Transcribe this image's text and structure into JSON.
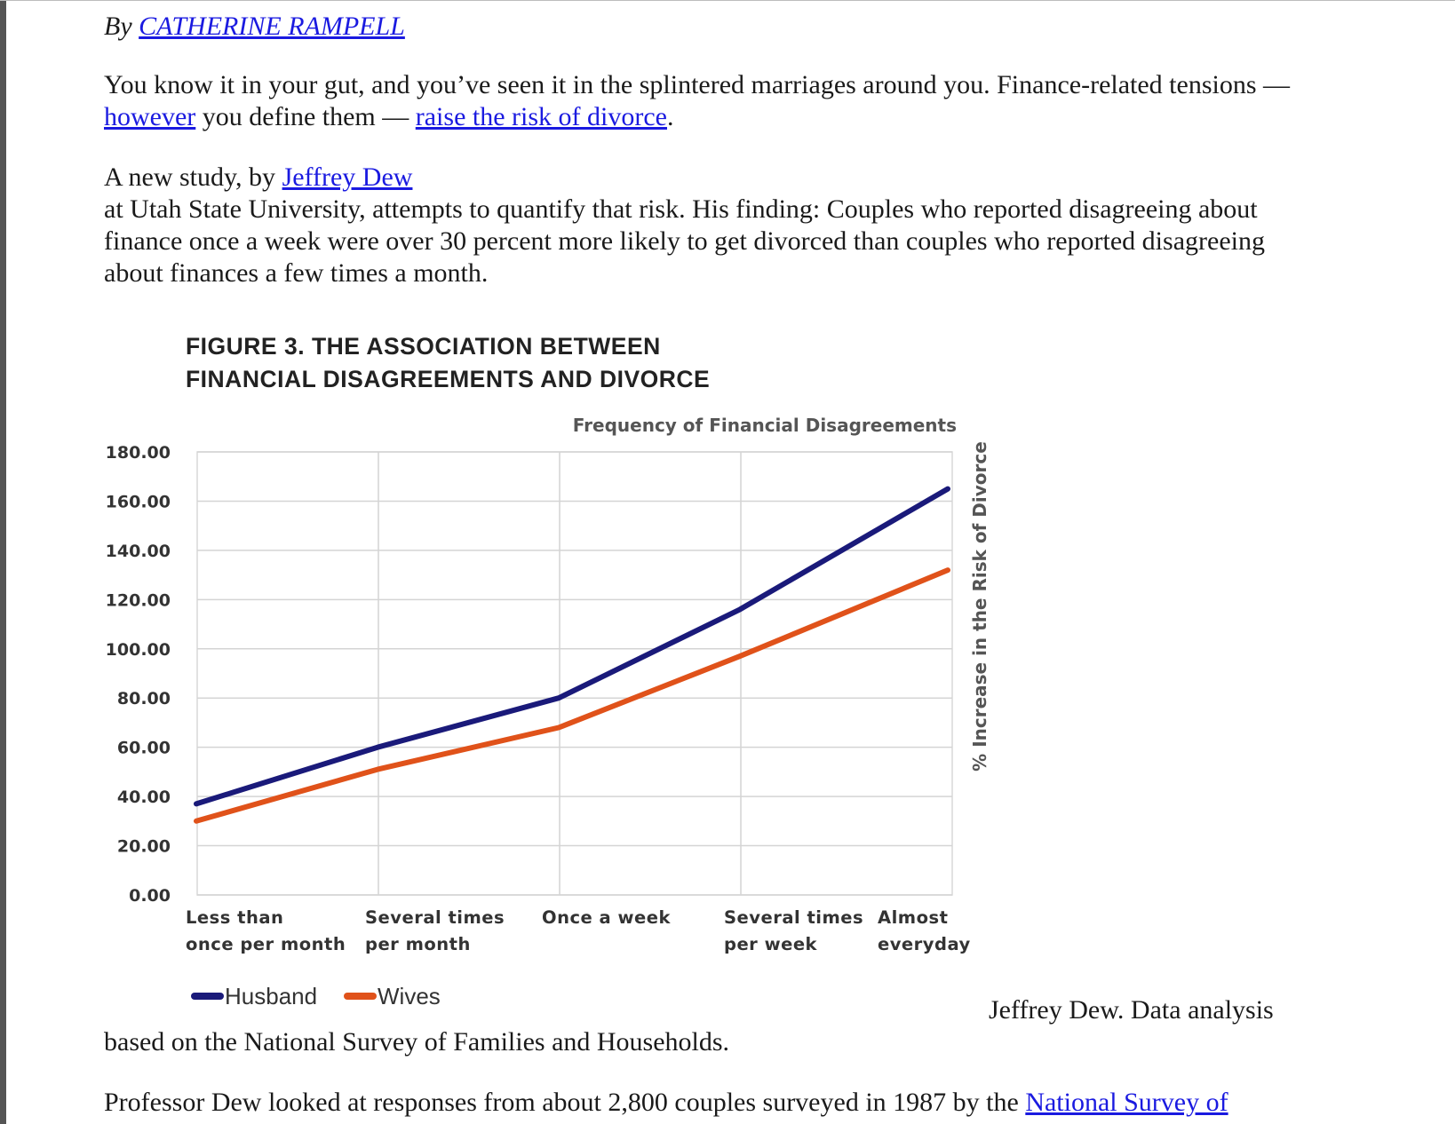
{
  "byline": {
    "prefix": "By ",
    "author": "CATHERINE RAMPELL"
  },
  "paragraph1": {
    "line1": "You know it in your gut, and you’ve seen it in the splintered marriages around you. Finance-related tensions —",
    "link_however": "however",
    "mid": " you define them — ",
    "link_raise": "raise the risk of divorce",
    "end": "."
  },
  "paragraph2": {
    "prefix": "A new study, by ",
    "link_dew": "Jeffrey Dew",
    "line2": "at Utah State University, attempts to quantify that risk. His finding: Couples who reported disagreeing about",
    "line3": "finance once a week were over 30 percent more likely to get divorced than couples who reported disagreeing",
    "line4": "about finances a few times a month."
  },
  "figure": {
    "title_line1": "FIGURE 3. THE ASSOCIATION BETWEEN",
    "title_line2": "FINANCIAL DISAGREEMENTS AND DIVORCE"
  },
  "chart_data": {
    "type": "line",
    "title": "FIGURE 3. THE ASSOCIATION BETWEEN FINANCIAL DISAGREEMENTS AND DIVORCE",
    "xlabel": "Frequency of Financial Disagreements",
    "ylabel": "% Increase in the Risk of Divorce",
    "categories": [
      [
        "Less than",
        "once per month"
      ],
      [
        "Several times",
        "per month"
      ],
      [
        "Once a week",
        ""
      ],
      [
        "Several times",
        "per week"
      ],
      [
        "Almost",
        "everyday"
      ]
    ],
    "yticks": [
      "0.00",
      "20.00",
      "40.00",
      "60.00",
      "80.00",
      "100.00",
      "120.00",
      "140.00",
      "160.00",
      "180.00"
    ],
    "ylim": [
      0,
      180
    ],
    "grid": true,
    "legend_position": "bottom-left",
    "series": [
      {
        "name": "Husband",
        "color": "#1a1a7a",
        "values": [
          37,
          60,
          80,
          116,
          165
        ]
      },
      {
        "name": "Wives",
        "color": "#e0521a",
        "values": [
          30,
          51,
          68,
          97,
          132
        ]
      }
    ]
  },
  "caption": {
    "right": "Jeffrey Dew. Data analysis",
    "left": "based on the National Survey of Families and Households."
  },
  "paragraph3": {
    "text": "Professor Dew looked at responses from about 2,800 couples surveyed in 1987 by the ",
    "link": "National Survey of"
  }
}
